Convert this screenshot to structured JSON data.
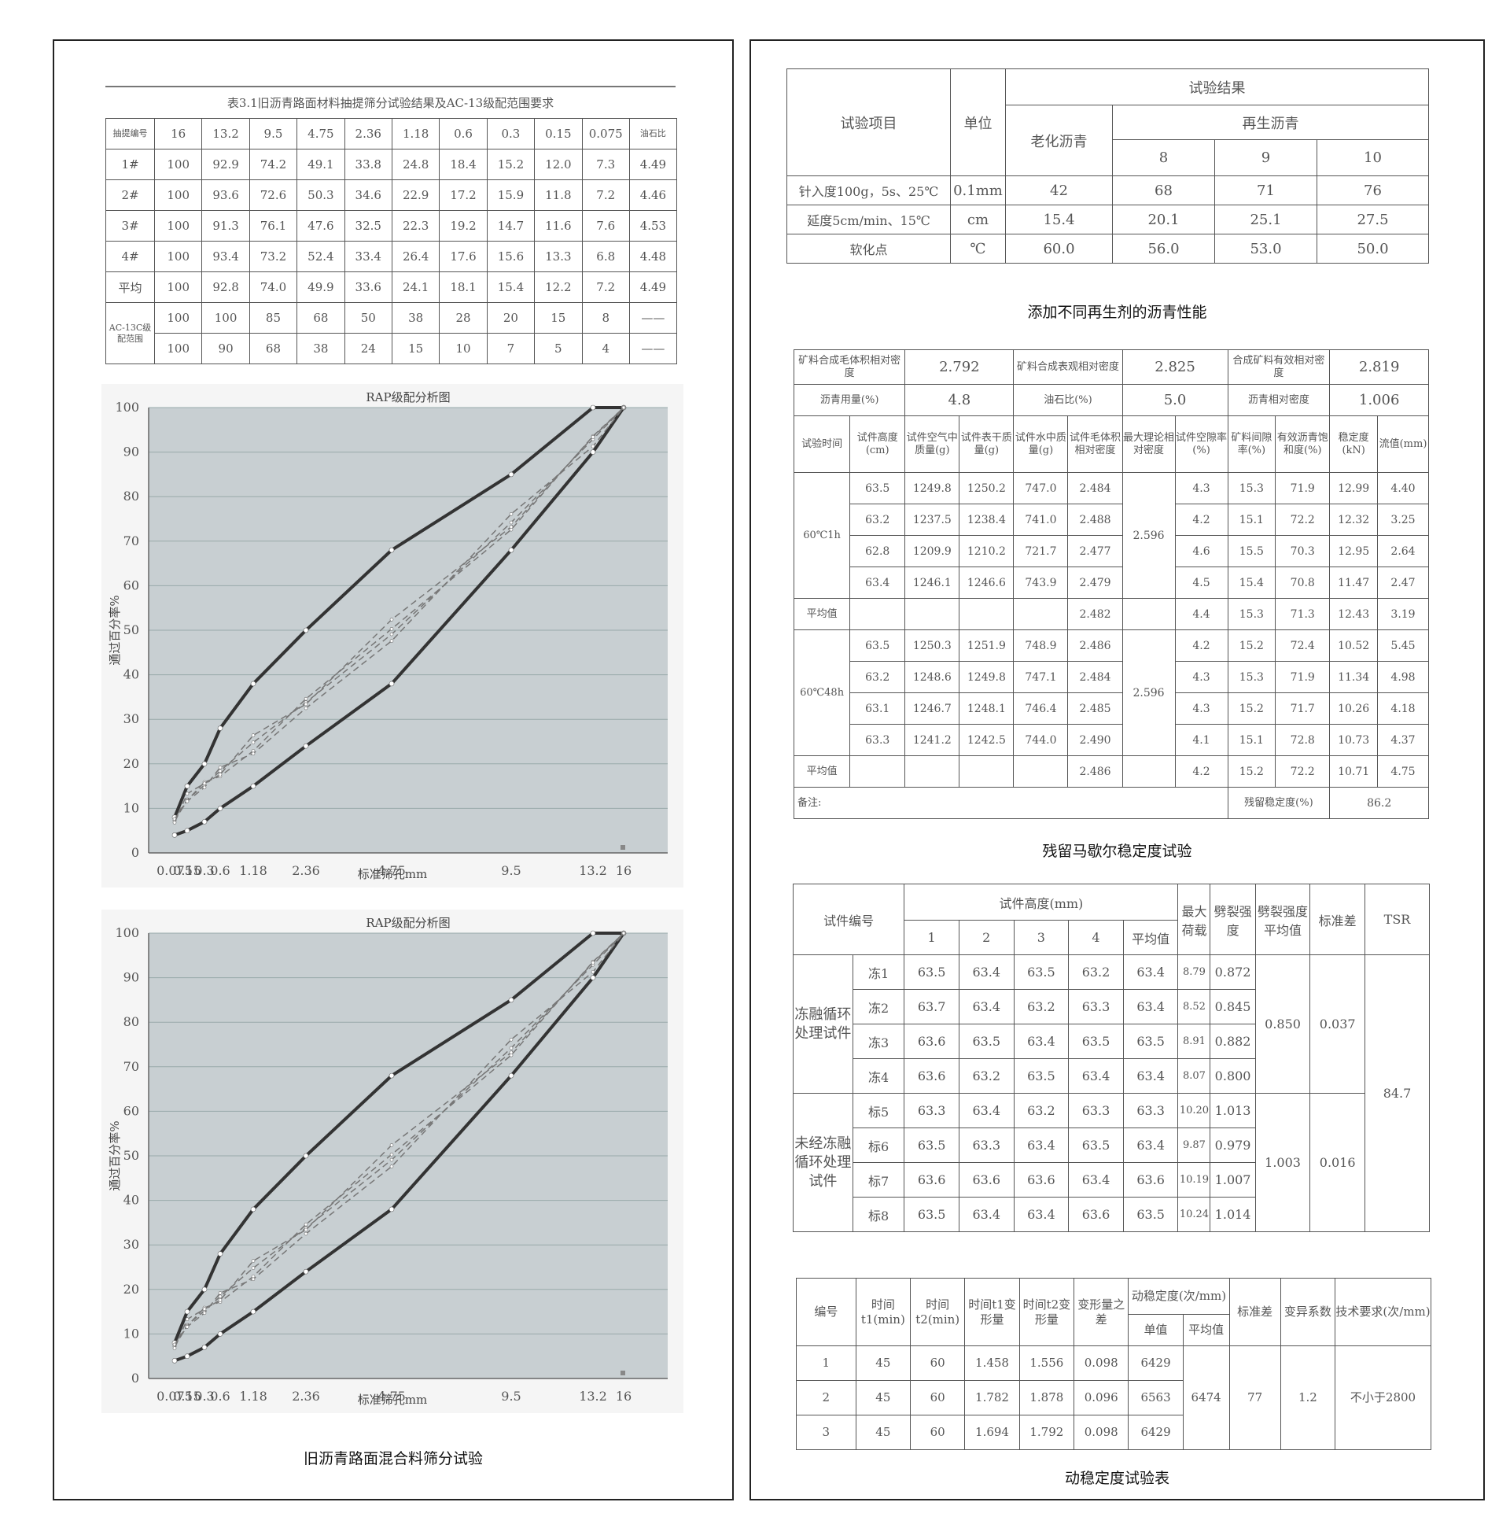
{
  "left_panel": {
    "table_title": "表3.1旧沥青路面材料抽提筛分试验结果及AC-13级配范围要求",
    "header": [
      "抽提编号",
      "16",
      "13.2",
      "9.5",
      "4.75",
      "2.36",
      "1.18",
      "0.6",
      "0.3",
      "0.15",
      "0.075",
      "油石比"
    ],
    "rows": [
      [
        "1#",
        "100",
        "92.9",
        "74.2",
        "49.1",
        "33.8",
        "24.8",
        "18.4",
        "15.2",
        "12.0",
        "7.3",
        "4.49"
      ],
      [
        "2#",
        "100",
        "93.6",
        "72.6",
        "50.3",
        "34.6",
        "22.9",
        "17.2",
        "15.9",
        "11.8",
        "7.2",
        "4.46"
      ],
      [
        "3#",
        "100",
        "91.3",
        "76.1",
        "47.6",
        "32.5",
        "22.3",
        "19.2",
        "14.7",
        "11.6",
        "7.6",
        "4.53"
      ],
      [
        "4#",
        "100",
        "93.4",
        "73.2",
        "52.4",
        "33.4",
        "26.4",
        "17.6",
        "15.6",
        "13.3",
        "6.8",
        "4.48"
      ],
      [
        "平均",
        "100",
        "92.8",
        "74.0",
        "49.9",
        "33.6",
        "24.1",
        "18.1",
        "15.4",
        "12.2",
        "7.2",
        "4.49"
      ]
    ],
    "range_label": "AC-13C级配范围",
    "range_upper": [
      "100",
      "100",
      "85",
      "68",
      "50",
      "38",
      "28",
      "20",
      "15",
      "8",
      "——"
    ],
    "range_lower": [
      "100",
      "90",
      "68",
      "38",
      "24",
      "15",
      "10",
      "7",
      "5",
      "4",
      "——"
    ],
    "caption": "旧沥青路面混合料筛分试验"
  },
  "chart_data": [
    {
      "type": "line",
      "title": "RAP级配分析图",
      "xlabel": "标准筛孔mm",
      "ylabel": "通过百分率%",
      "ylim": [
        0,
        100
      ],
      "yticks": [
        0,
        10,
        20,
        30,
        40,
        50,
        60,
        70,
        80,
        90,
        100
      ],
      "grid": true,
      "x": [
        "0.075",
        "0.15",
        "0.3",
        "0.6",
        "1.18",
        "2.36",
        "4.75",
        "9.5",
        "13.2",
        "16"
      ],
      "series": [
        {
          "name": "",
          "values": [
            8,
            15,
            20,
            28,
            38,
            50,
            68,
            85,
            100,
            100
          ]
        },
        {
          "name": "",
          "values": [
            4,
            5,
            7,
            10,
            15,
            24,
            38,
            68,
            90,
            100
          ]
        },
        {
          "name": "",
          "values": [
            7.3,
            12.0,
            15.2,
            18.4,
            24.8,
            33.8,
            49.1,
            74.2,
            92.9,
            100
          ]
        },
        {
          "name": "",
          "values": [
            7.2,
            11.8,
            15.9,
            17.2,
            22.9,
            34.6,
            50.3,
            72.6,
            93.6,
            100
          ]
        },
        {
          "name": "",
          "values": [
            7.6,
            11.6,
            14.7,
            19.2,
            22.3,
            32.5,
            47.6,
            76.1,
            91.3,
            100
          ]
        },
        {
          "name": "",
          "values": [
            6.8,
            13.3,
            15.6,
            17.6,
            26.4,
            33.4,
            52.4,
            73.2,
            93.4,
            100
          ]
        }
      ]
    },
    {
      "type": "line",
      "title": "RAP级配分析图",
      "xlabel": "标准筛孔mm",
      "ylabel": "通过百分率%",
      "ylim": [
        0,
        100
      ],
      "yticks": [
        0,
        10,
        20,
        30,
        40,
        50,
        60,
        70,
        80,
        90,
        100
      ],
      "grid": true,
      "x": [
        "0.075",
        "0.15",
        "0.3",
        "0.6",
        "1.18",
        "2.36",
        "4.75",
        "9.5",
        "13.2",
        "16"
      ],
      "series": [
        {
          "name": "",
          "values": [
            8,
            15,
            20,
            28,
            38,
            50,
            68,
            85,
            100,
            100
          ]
        },
        {
          "name": "",
          "values": [
            4,
            5,
            7,
            10,
            15,
            24,
            38,
            68,
            90,
            100
          ]
        },
        {
          "name": "",
          "values": [
            7.3,
            12.0,
            15.2,
            18.4,
            24.8,
            33.8,
            49.1,
            74.2,
            92.9,
            100
          ]
        },
        {
          "name": "",
          "values": [
            7.2,
            11.8,
            15.9,
            17.2,
            22.9,
            34.6,
            50.3,
            72.6,
            93.6,
            100
          ]
        },
        {
          "name": "",
          "values": [
            7.6,
            11.6,
            14.7,
            19.2,
            22.3,
            32.5,
            47.6,
            76.1,
            91.3,
            100
          ]
        },
        {
          "name": "",
          "values": [
            6.8,
            13.3,
            15.6,
            17.6,
            26.4,
            33.4,
            52.4,
            73.2,
            93.4,
            100
          ]
        }
      ]
    }
  ],
  "table2": {
    "h_item": "试验项目",
    "h_unit": "单位",
    "h_results": "试验结果",
    "h_aged": "老化沥青",
    "h_regen": "再生沥青",
    "regen_cols": [
      "8",
      "9",
      "10"
    ],
    "rows": [
      [
        "针入度100g，5s、25℃",
        "0.1mm",
        "42",
        "68",
        "71",
        "76"
      ],
      [
        "延度5cm/min、15℃",
        "cm",
        "15.4",
        "20.1",
        "25.1",
        "27.5"
      ],
      [
        "软化点",
        "℃",
        "60.0",
        "56.0",
        "53.0",
        "50.0"
      ]
    ],
    "caption": "添加不同再生剂的沥青性能"
  },
  "table3": {
    "top1": [
      "矿料合成毛体积相对密度",
      "2.792",
      "矿料合成表观相对密度",
      "2.825",
      "合成矿料有效相对密度",
      "2.819"
    ],
    "top2": [
      "沥青用量(%)",
      "4.8",
      "油石比(%)",
      "5.0",
      "沥青相对密度",
      "1.006"
    ],
    "header": [
      "试验时间",
      "试件高度(cm)",
      "试件空气中质量(g)",
      "试件表干质量(g)",
      "试件水中质量(g)",
      "试件毛体积相对密度",
      "最大理论相对密度",
      "试件空隙率(%)",
      "矿料间隙率(%)",
      "有效沥青饱和度(%)",
      "稳定度(kN)",
      "流值(mm)"
    ],
    "group1_label": "60℃1h",
    "group1_max": "2.596",
    "group1": [
      [
        "63.5",
        "1249.8",
        "1250.2",
        "747.0",
        "2.484",
        "4.3",
        "15.3",
        "71.9",
        "12.99",
        "4.40"
      ],
      [
        "63.2",
        "1237.5",
        "1238.4",
        "741.0",
        "2.488",
        "4.2",
        "15.1",
        "72.2",
        "12.32",
        "3.25"
      ],
      [
        "62.8",
        "1209.9",
        "1210.2",
        "721.7",
        "2.477",
        "4.6",
        "15.5",
        "70.3",
        "12.95",
        "2.64"
      ],
      [
        "63.4",
        "1246.1",
        "1246.6",
        "743.9",
        "2.479",
        "4.5",
        "15.4",
        "70.8",
        "11.47",
        "2.47"
      ]
    ],
    "avg_label": "平均值",
    "avg1": [
      "2.482",
      "4.4",
      "15.3",
      "71.3",
      "12.43",
      "3.19"
    ],
    "group2_label": "60℃48h",
    "group2_max": "2.596",
    "group2": [
      [
        "63.5",
        "1250.3",
        "1251.9",
        "748.9",
        "2.486",
        "4.2",
        "15.2",
        "72.4",
        "10.52",
        "5.45"
      ],
      [
        "63.2",
        "1248.6",
        "1249.8",
        "747.1",
        "2.484",
        "4.3",
        "15.3",
        "71.9",
        "11.34",
        "4.98"
      ],
      [
        "63.1",
        "1246.7",
        "1248.1",
        "746.4",
        "2.485",
        "4.3",
        "15.2",
        "71.7",
        "10.26",
        "4.18"
      ],
      [
        "63.3",
        "1241.2",
        "1242.5",
        "744.0",
        "2.490",
        "4.1",
        "15.1",
        "72.8",
        "10.73",
        "4.37"
      ]
    ],
    "avg2": [
      "2.486",
      "4.2",
      "15.2",
      "72.2",
      "10.71",
      "4.75"
    ],
    "note": "备注:",
    "residual_label": "残留稳定度(%)",
    "residual_value": "86.2",
    "caption": "残留马歇尔稳定度试验"
  },
  "table4": {
    "h_id": "试件编号",
    "h_height": "试件高度(mm)",
    "h_cols": [
      "1",
      "2",
      "3",
      "4",
      "平均值"
    ],
    "h_maxload": "最大荷载",
    "h_split": "劈裂强度",
    "h_splitavg": "劈裂强度平均值",
    "h_std": "标准差",
    "h_tsr": "TSR",
    "group1_label": "冻融循环处理试件",
    "group1": [
      [
        "冻1",
        "63.5",
        "63.4",
        "63.5",
        "63.2",
        "63.4",
        "8.79",
        "0.872"
      ],
      [
        "冻2",
        "63.7",
        "63.4",
        "63.2",
        "63.3",
        "63.4",
        "8.52",
        "0.845"
      ],
      [
        "冻3",
        "63.6",
        "63.5",
        "63.4",
        "63.5",
        "63.5",
        "8.91",
        "0.882"
      ],
      [
        "冻4",
        "63.6",
        "63.2",
        "63.5",
        "63.4",
        "63.4",
        "8.07",
        "0.800"
      ]
    ],
    "group1_avg": "0.850",
    "group1_std": "0.037",
    "group2_label": "未经冻融循环处理试件",
    "group2": [
      [
        "标5",
        "63.3",
        "63.4",
        "63.2",
        "63.3",
        "63.3",
        "10.20",
        "1.013"
      ],
      [
        "标6",
        "63.5",
        "63.3",
        "63.4",
        "63.5",
        "63.4",
        "9.87",
        "0.979"
      ],
      [
        "标7",
        "63.6",
        "63.6",
        "63.6",
        "63.4",
        "63.6",
        "10.19",
        "1.007"
      ],
      [
        "标8",
        "63.5",
        "63.4",
        "63.4",
        "63.6",
        "63.5",
        "10.24",
        "1.014"
      ]
    ],
    "group2_avg": "1.003",
    "group2_std": "0.016",
    "tsr": "84.7"
  },
  "table5": {
    "headers": [
      "编号",
      "时间t1(min)",
      "时间t2(min)",
      "时间t1变形量",
      "时间t2变形量",
      "变形量之差",
      "动稳定度(次/mm)",
      "单值",
      "平均值",
      "标准差",
      "变异系数",
      "技术要求(次/mm)"
    ],
    "rows": [
      [
        "1",
        "45",
        "60",
        "1.458",
        "1.556",
        "0.098",
        "6429"
      ],
      [
        "2",
        "45",
        "60",
        "1.782",
        "1.878",
        "0.096",
        "6563"
      ],
      [
        "3",
        "45",
        "60",
        "1.694",
        "1.792",
        "0.098",
        "6429"
      ]
    ],
    "avg": "6474",
    "std": "77",
    "cv": "1.2",
    "req": "不小于2800",
    "caption": "动稳定度试验表"
  }
}
